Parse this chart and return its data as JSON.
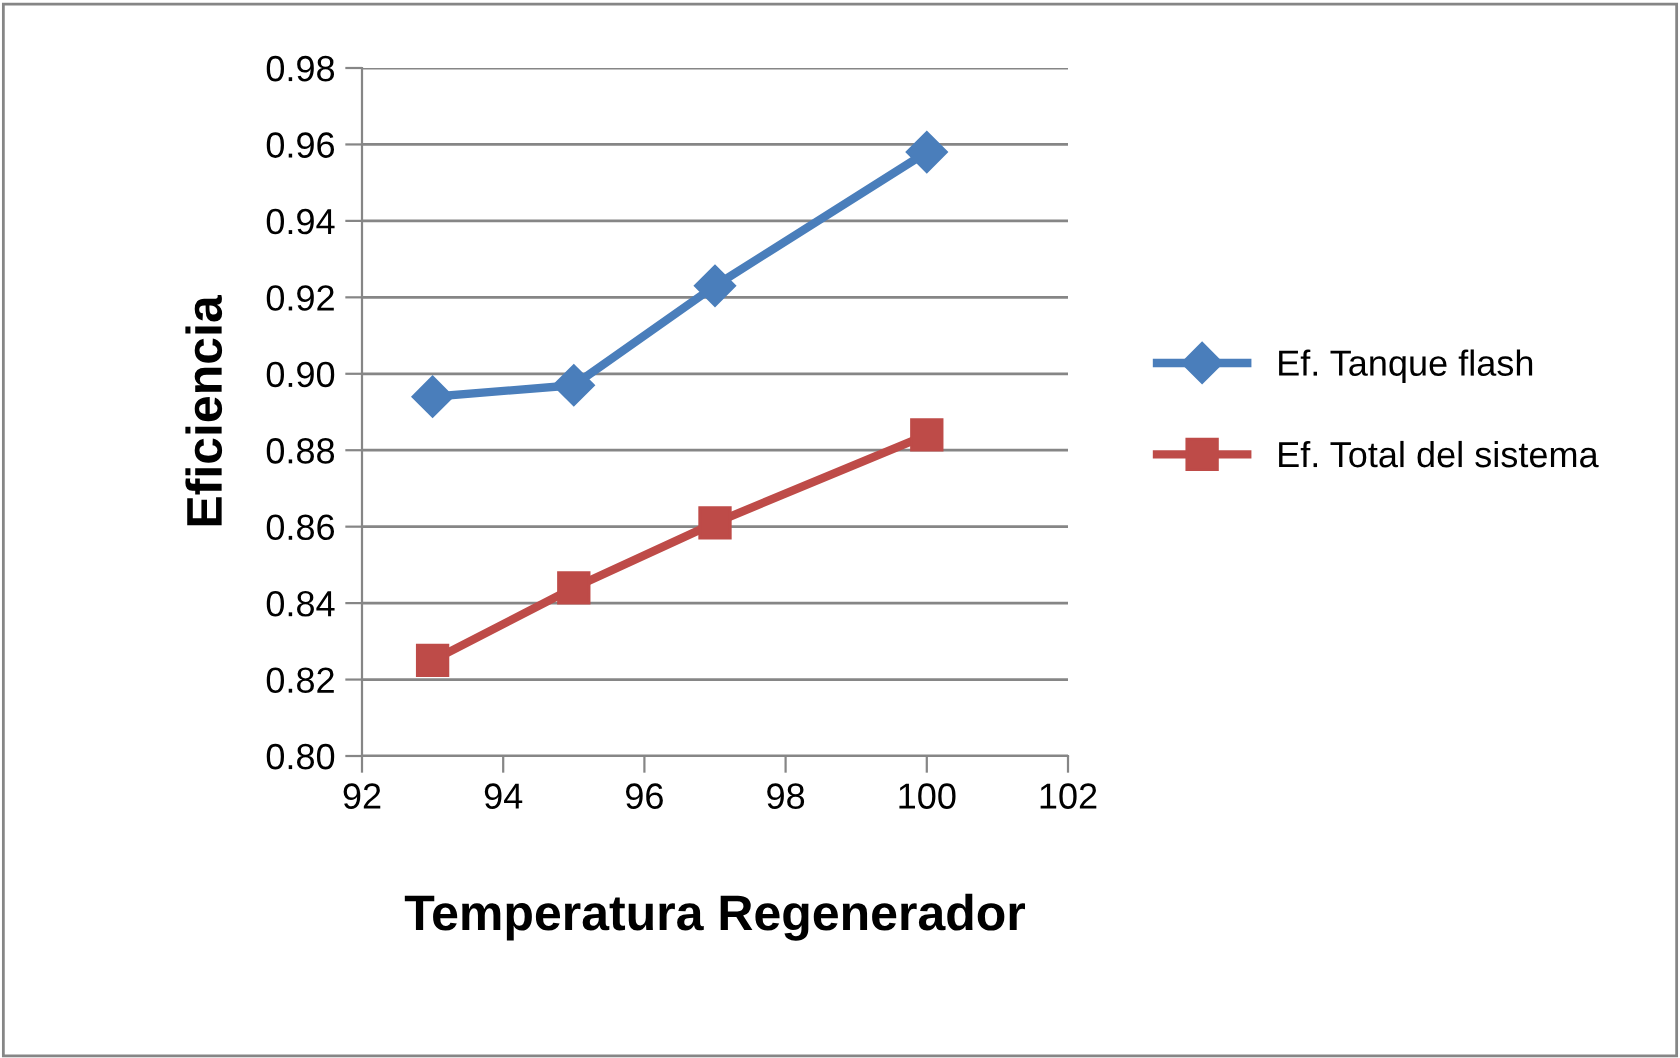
{
  "chart_data": {
    "type": "line",
    "xlabel": "Temperatura Regenerador",
    "ylabel": "Eficiencia",
    "x": [
      93,
      95,
      97,
      100
    ],
    "series": [
      {
        "name": "Ef. Tanque flash",
        "color": "#4a7ebb",
        "marker": "diamond",
        "values": [
          0.894,
          0.897,
          0.923,
          0.958
        ]
      },
      {
        "name": "Ef. Total del sistema",
        "color": "#be4b48",
        "marker": "square",
        "values": [
          0.825,
          0.844,
          0.861,
          0.884
        ]
      }
    ],
    "xlim": [
      92,
      102
    ],
    "xticks": [
      92,
      94,
      96,
      98,
      100,
      102
    ],
    "ylim": [
      0.8,
      0.98
    ],
    "yticks": [
      {
        "value": 0.8,
        "label": "0.80"
      },
      {
        "value": 0.82,
        "label": "0.82"
      },
      {
        "value": 0.84,
        "label": "0.84"
      },
      {
        "value": 0.86,
        "label": "0.86"
      },
      {
        "value": 0.88,
        "label": "0.88"
      },
      {
        "value": 0.9,
        "label": "0.90"
      },
      {
        "value": 0.92,
        "label": "0.92"
      },
      {
        "value": 0.94,
        "label": "0.94"
      },
      {
        "value": 0.96,
        "label": "0.96"
      },
      {
        "value": 0.98,
        "label": "0.98"
      }
    ],
    "grid": "y",
    "legend": "right"
  }
}
